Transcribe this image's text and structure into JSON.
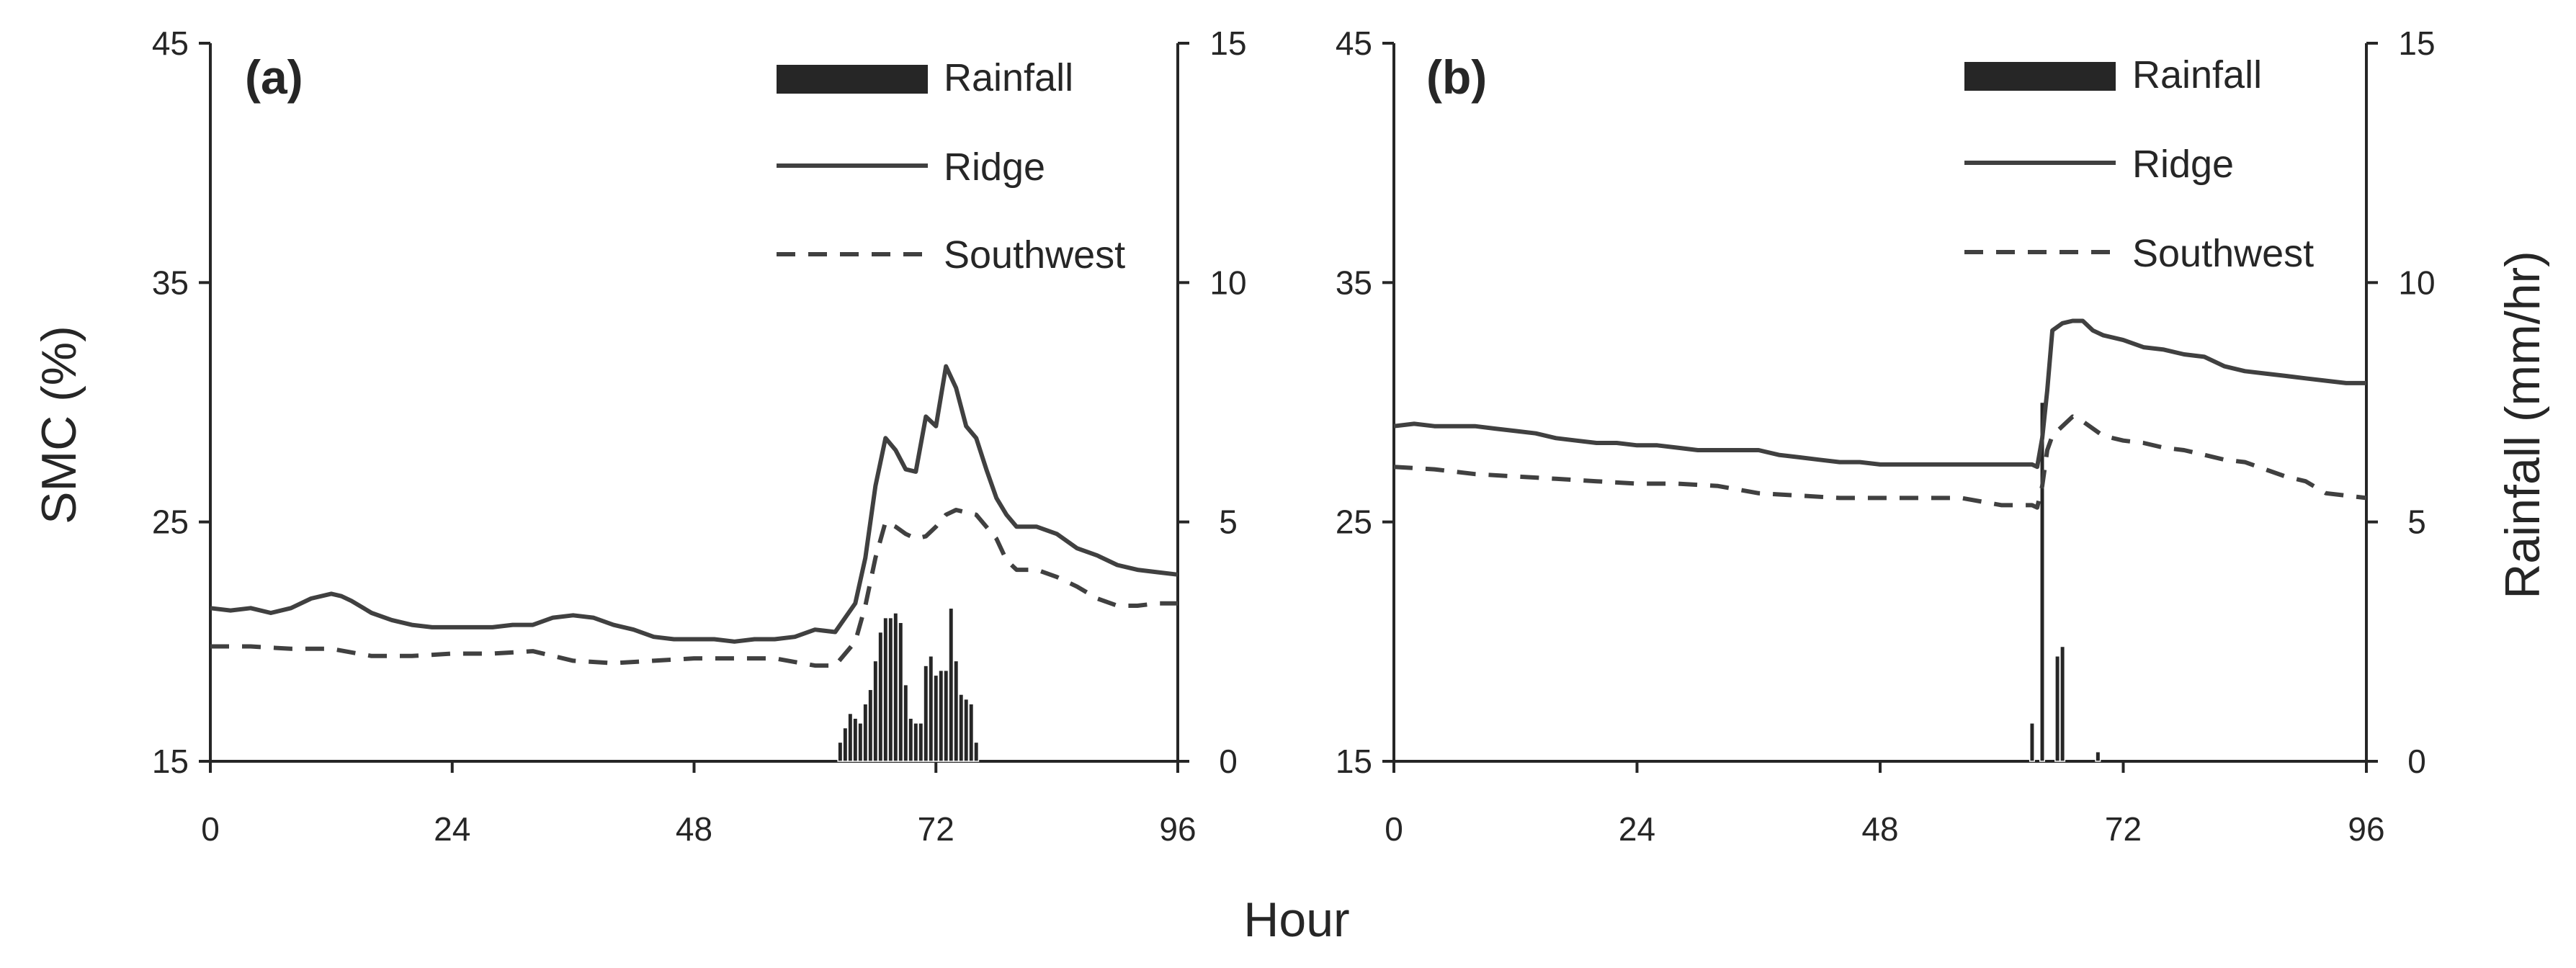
{
  "figure": {
    "x_title": "Hour",
    "y_left_title": "SMC (%)",
    "y_right_title": "Rainfall (mm/hr)"
  },
  "colors": {
    "axis": "#262626",
    "line": "#404040",
    "bar": "#262626"
  },
  "chart_data": [
    {
      "type": "line",
      "panel_label": "(a)",
      "title": "",
      "xlabel": "",
      "ylabel": "SMC (%)",
      "y2label": "",
      "x_ticks": [
        0,
        24,
        48,
        72,
        96
      ],
      "xlim": [
        0,
        96
      ],
      "ylim": [
        15,
        45
      ],
      "y_ticks": [
        15,
        25,
        35,
        45
      ],
      "y2lim": [
        0,
        15
      ],
      "y2_ticks": [
        0,
        5,
        10,
        15
      ],
      "grid": false,
      "legend_position": "top-right",
      "legend": [
        "Rainfall",
        "Ridge",
        "Southwest"
      ],
      "series": [
        {
          "name": "Ridge",
          "style": "solid",
          "axis": "left",
          "x": [
            0,
            2,
            4,
            6,
            8,
            10,
            12,
            13,
            14,
            16,
            18,
            20,
            22,
            24,
            26,
            28,
            30,
            32,
            34,
            36,
            38,
            40,
            42,
            44,
            46,
            48,
            50,
            52,
            54,
            56,
            58,
            60,
            62,
            64,
            65,
            66,
            67,
            68,
            69,
            70,
            71,
            72,
            73,
            74,
            75,
            76,
            77,
            78,
            79,
            80,
            82,
            84,
            86,
            88,
            90,
            92,
            94,
            96
          ],
          "y": [
            21.4,
            21.3,
            21.4,
            21.2,
            21.4,
            21.8,
            22.0,
            21.9,
            21.7,
            21.2,
            20.9,
            20.7,
            20.6,
            20.6,
            20.6,
            20.6,
            20.7,
            20.7,
            21.0,
            21.1,
            21.0,
            20.7,
            20.5,
            20.2,
            20.1,
            20.1,
            20.1,
            20.0,
            20.1,
            20.1,
            20.2,
            20.5,
            20.4,
            21.6,
            23.5,
            26.5,
            28.5,
            28.0,
            27.2,
            27.1,
            29.4,
            29.0,
            31.5,
            30.6,
            29.0,
            28.5,
            27.2,
            26.0,
            25.3,
            24.8,
            24.8,
            24.5,
            23.9,
            23.6,
            23.2,
            23.0,
            22.9,
            22.8
          ]
        },
        {
          "name": "Southwest",
          "style": "dashed",
          "axis": "left",
          "x": [
            0,
            4,
            8,
            12,
            16,
            20,
            24,
            28,
            32,
            36,
            40,
            44,
            48,
            52,
            56,
            60,
            62,
            64,
            65,
            66,
            67,
            68,
            69,
            70,
            71,
            72,
            73,
            74,
            75,
            76,
            77,
            78,
            79,
            80,
            82,
            84,
            86,
            88,
            90,
            92,
            94,
            96
          ],
          "y": [
            19.8,
            19.8,
            19.7,
            19.7,
            19.4,
            19.4,
            19.5,
            19.5,
            19.6,
            19.2,
            19.1,
            19.2,
            19.3,
            19.3,
            19.3,
            19.0,
            19.0,
            20.0,
            21.5,
            23.5,
            25.0,
            24.8,
            24.5,
            24.3,
            24.4,
            24.8,
            25.3,
            25.5,
            25.4,
            25.3,
            24.8,
            24.3,
            23.4,
            23.0,
            23.0,
            22.7,
            22.3,
            21.8,
            21.5,
            21.5,
            21.6,
            21.6
          ]
        },
        {
          "name": "Rainfall",
          "type": "bar",
          "axis": "right",
          "x": [
            62.5,
            63,
            63.5,
            64,
            64.5,
            65,
            65.5,
            66,
            66.5,
            67,
            67.5,
            68,
            68.5,
            69,
            69.5,
            70,
            70.5,
            71,
            71.5,
            72,
            72.5,
            73,
            73.5,
            74,
            74.5,
            75,
            75.5,
            76,
            76.5,
            77,
            77.5,
            78
          ],
          "y": [
            0.4,
            0.7,
            1.0,
            0.9,
            0.8,
            1.2,
            1.5,
            2.1,
            2.7,
            3.0,
            3.0,
            3.1,
            2.9,
            1.6,
            0.9,
            0.8,
            0.8,
            2.0,
            2.2,
            1.8,
            1.9,
            1.9,
            3.2,
            2.1,
            1.4,
            1.3,
            1.2,
            0.4,
            0,
            0,
            0,
            0
          ]
        }
      ]
    },
    {
      "type": "line",
      "panel_label": "(b)",
      "title": "",
      "xlabel": "",
      "ylabel": "",
      "y2label": "Rainfall (mm/hr)",
      "x_ticks": [
        0,
        24,
        48,
        72,
        96
      ],
      "xlim": [
        0,
        96
      ],
      "ylim": [
        15,
        45
      ],
      "y_ticks": [
        15,
        25,
        35,
        45
      ],
      "y2lim": [
        0,
        15
      ],
      "y2_ticks": [
        0,
        5,
        10,
        15
      ],
      "grid": false,
      "legend_position": "top-right",
      "legend": [
        "Rainfall",
        "Ridge",
        "Southwest"
      ],
      "series": [
        {
          "name": "Ridge",
          "style": "solid",
          "axis": "left",
          "x": [
            0,
            2,
            4,
            6,
            8,
            10,
            12,
            14,
            16,
            18,
            20,
            22,
            24,
            26,
            28,
            30,
            32,
            34,
            36,
            38,
            40,
            42,
            44,
            46,
            48,
            50,
            52,
            54,
            56,
            58,
            60,
            62,
            63,
            63.5,
            64,
            64.5,
            65,
            66,
            67,
            68,
            69,
            70,
            72,
            74,
            76,
            78,
            80,
            82,
            84,
            86,
            88,
            90,
            92,
            94,
            96
          ],
          "y": [
            29.0,
            29.1,
            29.0,
            29.0,
            29.0,
            28.9,
            28.8,
            28.7,
            28.5,
            28.4,
            28.3,
            28.3,
            28.2,
            28.2,
            28.1,
            28.0,
            28.0,
            28.0,
            28.0,
            27.8,
            27.7,
            27.6,
            27.5,
            27.5,
            27.4,
            27.4,
            27.4,
            27.4,
            27.4,
            27.4,
            27.4,
            27.4,
            27.4,
            27.3,
            28.5,
            30.5,
            33.0,
            33.3,
            33.4,
            33.4,
            33.0,
            32.8,
            32.6,
            32.3,
            32.2,
            32.0,
            31.9,
            31.5,
            31.3,
            31.2,
            31.1,
            31.0,
            30.9,
            30.8,
            30.8
          ]
        },
        {
          "name": "Southwest",
          "style": "dashed",
          "axis": "left",
          "x": [
            0,
            4,
            8,
            12,
            16,
            20,
            24,
            28,
            32,
            36,
            40,
            44,
            48,
            52,
            56,
            60,
            62,
            63,
            63.5,
            64,
            64.5,
            65,
            66,
            67,
            68,
            70,
            72,
            74,
            76,
            78,
            80,
            82,
            84,
            86,
            88,
            90,
            92,
            94,
            96
          ],
          "y": [
            27.3,
            27.2,
            27.0,
            26.9,
            26.8,
            26.7,
            26.6,
            26.6,
            26.5,
            26.2,
            26.1,
            26.0,
            26.0,
            26.0,
            26.0,
            25.7,
            25.7,
            25.7,
            25.6,
            26.5,
            28.0,
            28.6,
            29.0,
            29.4,
            29.2,
            28.6,
            28.4,
            28.3,
            28.1,
            28.0,
            27.8,
            27.6,
            27.5,
            27.2,
            26.9,
            26.7,
            26.2,
            26.1,
            26.0
          ]
        },
        {
          "name": "Rainfall",
          "type": "bar",
          "axis": "right",
          "x": [
            63,
            63.5,
            64,
            64.5,
            65,
            65.5,
            66,
            66.5,
            67,
            67.5,
            68,
            68.5,
            69,
            69.5,
            70
          ],
          "y": [
            0.8,
            0,
            7.5,
            0,
            0,
            2.2,
            2.4,
            0,
            0,
            0,
            0,
            0,
            0,
            0.2,
            0
          ]
        }
      ]
    }
  ]
}
